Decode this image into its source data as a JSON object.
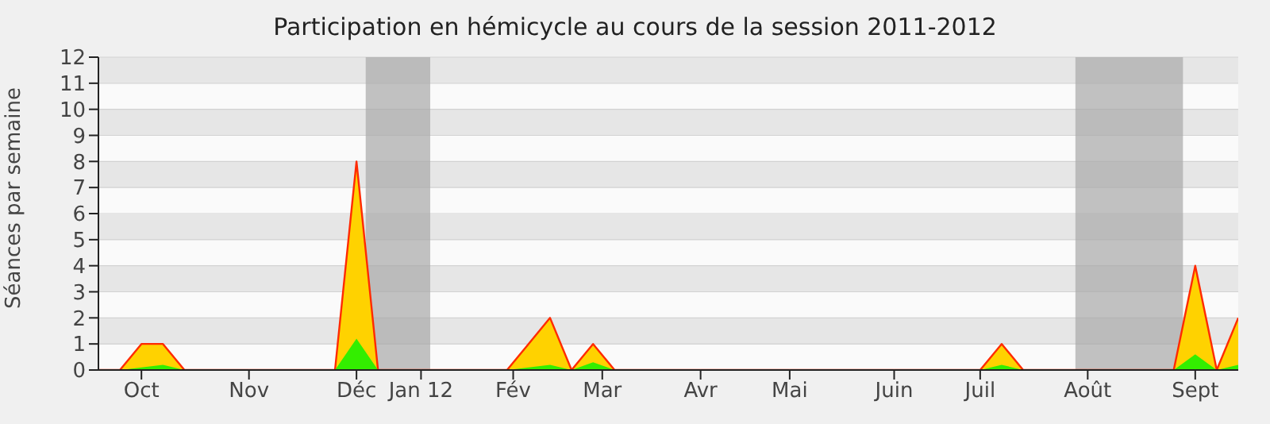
{
  "chart_data": {
    "type": "area",
    "title": "Participation en hémicycle au cours de la session 2011-2012",
    "ylabel": "Séances par semaine",
    "x": [
      "2011-09-19",
      "2011-09-26",
      "2011-10-03",
      "2011-10-10",
      "2011-10-17",
      "2011-10-24",
      "2011-10-31",
      "2011-11-07",
      "2011-11-14",
      "2011-11-21",
      "2011-11-28",
      "2011-12-05",
      "2011-12-12",
      "2011-12-19",
      "2011-12-26",
      "2012-01-02",
      "2012-01-09",
      "2012-01-16",
      "2012-01-23",
      "2012-01-30",
      "2012-02-06",
      "2012-02-13",
      "2012-02-20",
      "2012-02-27",
      "2012-03-05",
      "2012-03-12",
      "2012-03-19",
      "2012-03-26",
      "2012-04-02",
      "2012-04-09",
      "2012-04-16",
      "2012-04-23",
      "2012-04-30",
      "2012-05-07",
      "2012-05-14",
      "2012-05-21",
      "2012-05-28",
      "2012-06-04",
      "2012-06-11",
      "2012-06-18",
      "2012-06-25",
      "2012-07-02",
      "2012-07-09",
      "2012-07-16",
      "2012-07-23",
      "2012-07-30",
      "2012-08-06",
      "2012-08-13",
      "2012-08-20",
      "2012-08-27",
      "2012-09-03",
      "2012-09-10",
      "2012-09-17",
      "2012-09-24"
    ],
    "series": [
      {
        "color": "#ffd200",
        "values": [
          0,
          0,
          1,
          1,
          0,
          0,
          0,
          0,
          0,
          0,
          0,
          0,
          8,
          0,
          0,
          0,
          0,
          0,
          0,
          0,
          1,
          2,
          0,
          1,
          0,
          0,
          0,
          0,
          0,
          0,
          0,
          0,
          0,
          0,
          0,
          0,
          0,
          0,
          0,
          0,
          0,
          0,
          1,
          0,
          0,
          0,
          0,
          0,
          0,
          0,
          0,
          4,
          0,
          2
        ]
      },
      {
        "color": "#33ee00",
        "values": [
          0,
          0,
          0.1,
          0.2,
          0,
          0,
          0,
          0,
          0,
          0,
          0,
          0,
          1.2,
          0,
          0,
          0,
          0,
          0,
          0,
          0,
          0.1,
          0.2,
          0,
          0.3,
          0,
          0,
          0,
          0,
          0,
          0,
          0,
          0,
          0,
          0,
          0,
          0,
          0,
          0,
          0,
          0,
          0,
          0,
          0.2,
          0,
          0,
          0,
          0,
          0,
          0,
          0,
          0,
          0.6,
          0,
          0.2
        ]
      }
    ],
    "xlim": [
      "2011-09-19",
      "2012-09-24"
    ],
    "xticks": [
      {
        "value": "2011-10-03",
        "label": "Oct"
      },
      {
        "value": "2011-11-07",
        "label": "Nov"
      },
      {
        "value": "2011-12-12",
        "label": "Déc"
      },
      {
        "value": "2012-01-02",
        "label": "Jan 12"
      },
      {
        "value": "2012-02-01",
        "label": "Fév"
      },
      {
        "value": "2012-03-01",
        "label": "Mar"
      },
      {
        "value": "2012-04-02",
        "label": "Avr"
      },
      {
        "value": "2012-05-01",
        "label": "Mai"
      },
      {
        "value": "2012-06-04",
        "label": "Juin"
      },
      {
        "value": "2012-07-02",
        "label": "Juil"
      },
      {
        "value": "2012-08-06",
        "label": "Août"
      },
      {
        "value": "2012-09-10",
        "label": "Sept"
      }
    ],
    "ylim": [
      0,
      12
    ],
    "yticks": [
      0,
      1,
      2,
      3,
      4,
      5,
      6,
      7,
      8,
      9,
      10,
      11,
      12
    ],
    "bands": [
      {
        "axis": "x",
        "from": "2011-12-15",
        "to": "2012-01-05",
        "color": "#a8a8a8"
      },
      {
        "axis": "x",
        "from": "2012-08-02",
        "to": "2012-09-06",
        "color": "#a8a8a8"
      }
    ],
    "grid": "y",
    "legend": false
  }
}
